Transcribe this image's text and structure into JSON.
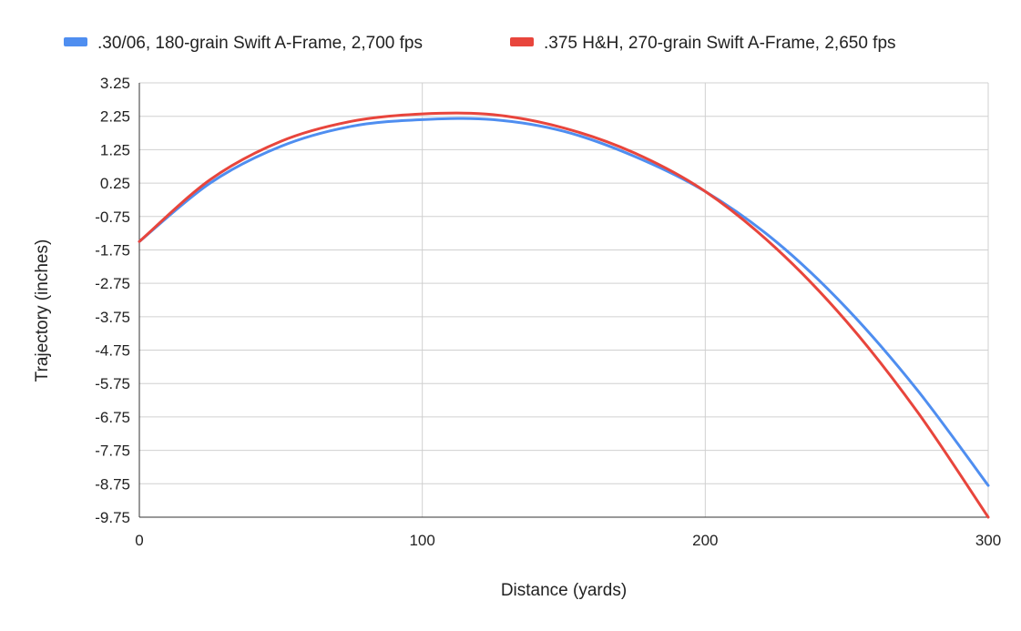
{
  "chart_data": {
    "type": "line",
    "title": "",
    "xlabel": "Distance (yards)",
    "ylabel": "Trajectory (inches)",
    "xlim": [
      0,
      300
    ],
    "ylim": [
      -9.75,
      3.25
    ],
    "x_ticks": [
      0,
      100,
      200,
      300
    ],
    "x_tick_labels": [
      "0",
      "100",
      "200",
      "300"
    ],
    "y_ticks": [
      3.25,
      2.25,
      1.25,
      0.25,
      -0.75,
      -1.75,
      -2.75,
      -3.75,
      -4.75,
      -5.75,
      -6.75,
      -7.75,
      -8.75,
      -9.75
    ],
    "y_tick_labels": [
      "3.25",
      "2.25",
      "1.25",
      "0.25",
      "-0.75",
      "-1.75",
      "-2.75",
      "-3.75",
      "-4.75",
      "-5.75",
      "-6.75",
      "-7.75",
      "-8.75",
      "-9.75"
    ],
    "grid": {
      "horizontal": true,
      "vertical": true
    },
    "legend_position": "top",
    "x": [
      0,
      25,
      50,
      75,
      100,
      125,
      150,
      175,
      200,
      225,
      250,
      275,
      300
    ],
    "series": [
      {
        "name": ".30/06, 180-grain Swift A-Frame, 2,700 fps",
        "color": "#4f8ef0",
        "values": [
          -1.5,
          0.25,
          1.35,
          1.95,
          2.15,
          2.15,
          1.8,
          1.05,
          0.0,
          -1.5,
          -3.5,
          -5.95,
          -8.8
        ]
      },
      {
        "name": ".375 H&H, 270-grain Swift A-Frame, 2,650 fps",
        "color": "#e8453c",
        "values": [
          -1.5,
          0.35,
          1.5,
          2.1,
          2.32,
          2.3,
          1.9,
          1.15,
          0.0,
          -1.7,
          -3.9,
          -6.6,
          -9.75
        ]
      }
    ]
  }
}
